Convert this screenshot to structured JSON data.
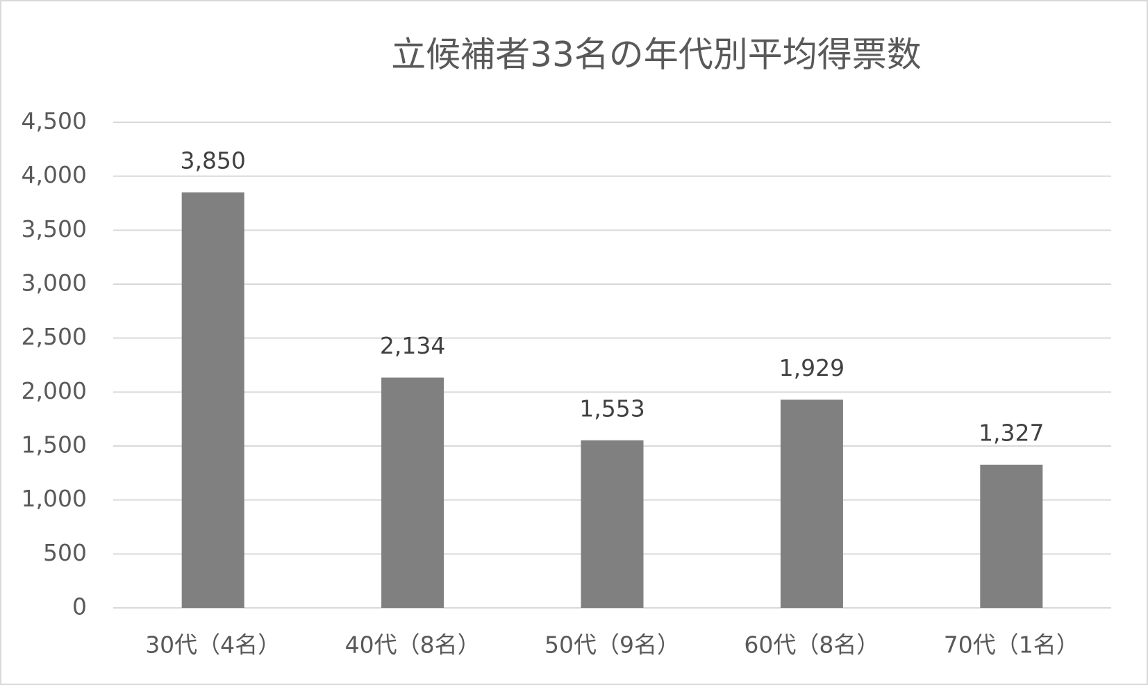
{
  "chart_data": {
    "type": "bar",
    "title": "立候補者33名の年代別平均得票数",
    "categories": [
      "30代（4名）",
      "40代（8名）",
      "50代（9名）",
      "60代（8名）",
      "70代（1名）"
    ],
    "values": [
      3850,
      2134,
      1553,
      1929,
      1327
    ],
    "value_labels": [
      "3,850",
      "2,134",
      "1,553",
      "1,929",
      "1,327"
    ],
    "color": "#808080",
    "ylim": [
      0,
      4500
    ],
    "yticks": [
      0,
      500,
      {
        "value": 1000,
        "label": "1,000"
      },
      {
        "value": 1500,
        "label": "1,500"
      },
      {
        "value": 2000,
        "label": "2,000"
      },
      {
        "value": 2500,
        "label": "2,500"
      },
      {
        "value": 3000,
        "label": "3,000"
      },
      {
        "value": 3500,
        "label": "3,500"
      },
      {
        "value": 4000,
        "label": "4,000"
      },
      {
        "value": 4500,
        "label": "4,500"
      }
    ],
    "grid": true
  }
}
